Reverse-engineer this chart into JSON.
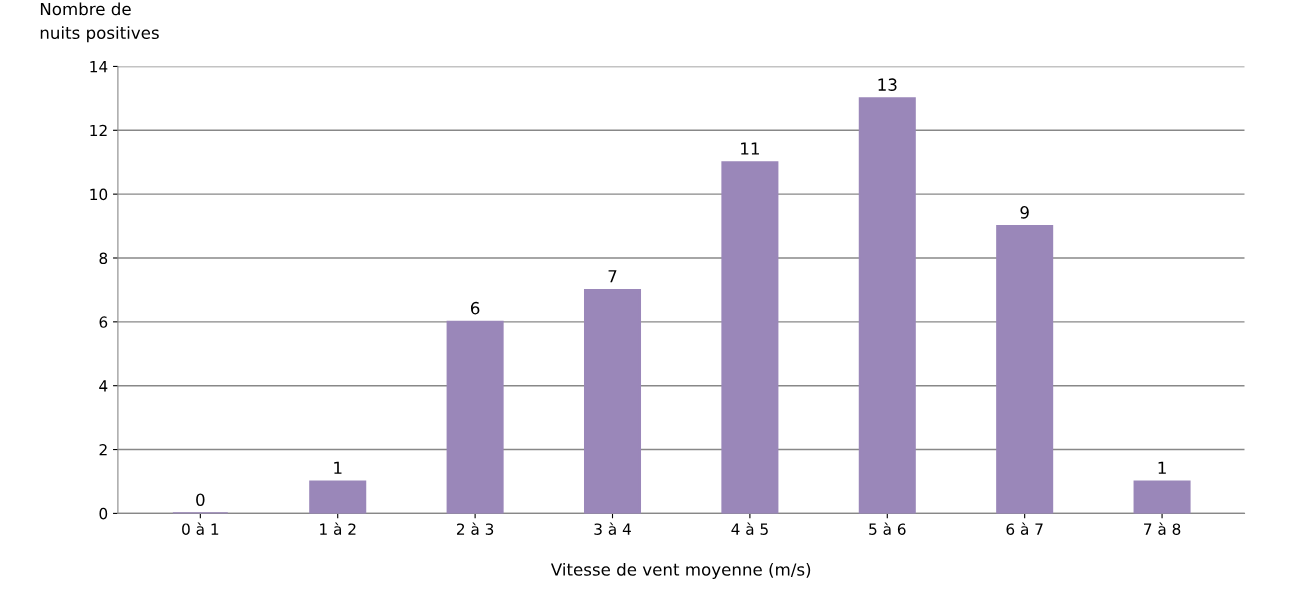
{
  "chart_data": {
    "type": "bar",
    "xlabel": "Vitesse de vent moyenne (m/s)",
    "ylabel": "Nombre de\nnuits positives",
    "categories": [
      "0 à 1",
      "1 à 2",
      "2 à 3",
      "3 à 4",
      "4 à 5",
      "5 à 6",
      "6 à 7",
      "7 à 8"
    ],
    "values": [
      0,
      1,
      6,
      7,
      11,
      13,
      9,
      1
    ],
    "color": "#9a87b9",
    "ylim": [
      0,
      14
    ],
    "yticks": [
      0,
      2,
      4,
      6,
      8,
      10,
      12,
      14
    ],
    "grid": "y",
    "data_labels": true
  }
}
